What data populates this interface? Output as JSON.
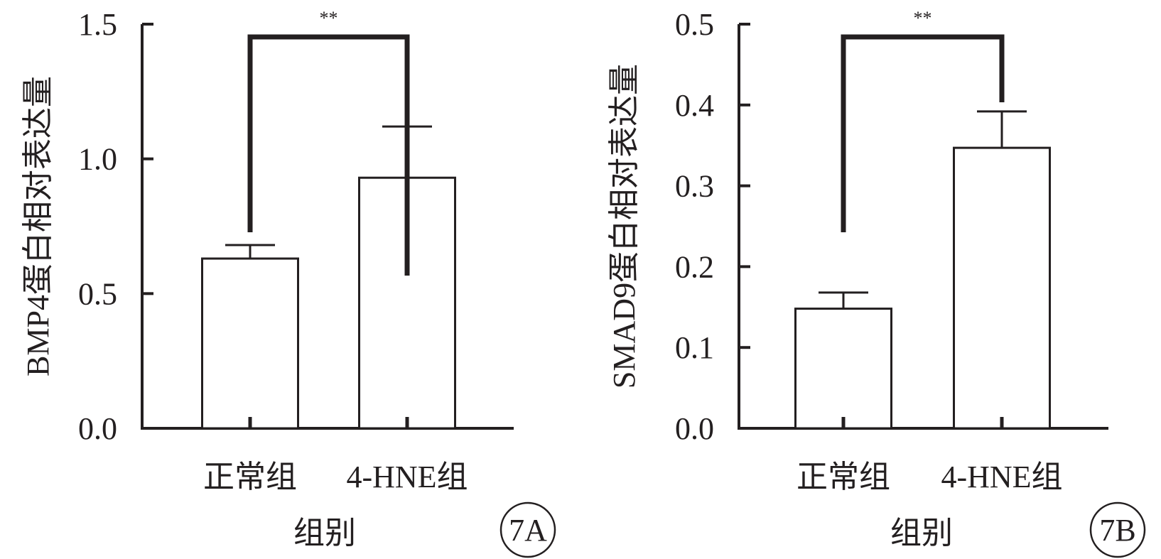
{
  "chart_data": [
    {
      "type": "bar",
      "panel_label": "7A",
      "categories": [
        "正常组",
        "4-HNE组"
      ],
      "values": [
        0.63,
        0.93
      ],
      "errors": [
        0.05,
        0.19
      ],
      "ylabel": "BMP4蛋白相对表达量",
      "xlabel": "组别",
      "ylim": [
        0,
        1.5
      ],
      "yticks": [
        "0.0",
        "0.5",
        "1.0",
        "1.5"
      ],
      "ytick_values": [
        0,
        0.5,
        1.0,
        1.5
      ],
      "significance": {
        "label": "**",
        "between": [
          0,
          1
        ]
      },
      "grid": false,
      "bar_fill": "#ffffff",
      "stroke": "#231f20"
    },
    {
      "type": "bar",
      "panel_label": "7B",
      "categories": [
        "正常组",
        "4-HNE组"
      ],
      "values": [
        0.148,
        0.347
      ],
      "errors": [
        0.02,
        0.045
      ],
      "ylabel": "SMAD9蛋白相对表达量",
      "xlabel": "组别",
      "ylim": [
        0,
        0.5
      ],
      "yticks": [
        "0.0",
        "0.1",
        "0.2",
        "0.3",
        "0.4",
        "0.5"
      ],
      "ytick_values": [
        0,
        0.1,
        0.2,
        0.3,
        0.4,
        0.5
      ],
      "significance": {
        "label": "**",
        "between": [
          0,
          1
        ]
      },
      "grid": false,
      "bar_fill": "#ffffff",
      "stroke": "#231f20"
    }
  ]
}
